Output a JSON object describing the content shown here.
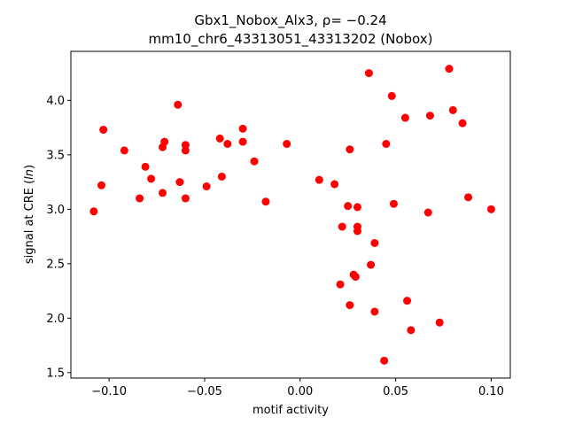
{
  "chart_data": {
    "type": "scatter",
    "title_line1": "Gbx1_Nobox_Alx3, ρ= −0.24",
    "title_line2": "mm10_chr6_43313051_43313202 (Nobox)",
    "xlabel": "motif activity",
    "ylabel": "signal at CRE (ln)",
    "xlim": [
      -0.12,
      0.11
    ],
    "ylim": [
      1.45,
      4.45
    ],
    "xticks": [
      -0.1,
      -0.05,
      0.0,
      0.05,
      0.1
    ],
    "xtick_labels": [
      "−0.10",
      "−0.05",
      "0.00",
      "0.05",
      "0.10"
    ],
    "yticks": [
      1.5,
      2.0,
      2.5,
      3.0,
      3.5,
      4.0
    ],
    "ytick_labels": [
      "1.5",
      "2.0",
      "2.5",
      "3.0",
      "3.5",
      "4.0"
    ],
    "grid": false,
    "marker_color": "#ff0000",
    "points": [
      {
        "x": -0.108,
        "y": 2.98
      },
      {
        "x": -0.104,
        "y": 3.22
      },
      {
        "x": -0.103,
        "y": 3.73
      },
      {
        "x": -0.092,
        "y": 3.54
      },
      {
        "x": -0.084,
        "y": 3.1
      },
      {
        "x": -0.081,
        "y": 3.39
      },
      {
        "x": -0.078,
        "y": 3.28
      },
      {
        "x": -0.072,
        "y": 3.57
      },
      {
        "x": -0.071,
        "y": 3.62
      },
      {
        "x": -0.072,
        "y": 3.15
      },
      {
        "x": -0.064,
        "y": 3.96
      },
      {
        "x": -0.063,
        "y": 3.25
      },
      {
        "x": -0.06,
        "y": 3.59
      },
      {
        "x": -0.06,
        "y": 3.54
      },
      {
        "x": -0.06,
        "y": 3.1
      },
      {
        "x": -0.049,
        "y": 3.21
      },
      {
        "x": -0.042,
        "y": 3.65
      },
      {
        "x": -0.041,
        "y": 3.3
      },
      {
        "x": -0.038,
        "y": 3.6
      },
      {
        "x": -0.03,
        "y": 3.74
      },
      {
        "x": -0.03,
        "y": 3.62
      },
      {
        "x": -0.024,
        "y": 3.44
      },
      {
        "x": -0.018,
        "y": 3.07
      },
      {
        "x": -0.007,
        "y": 3.6
      },
      {
        "x": 0.01,
        "y": 3.27
      },
      {
        "x": 0.018,
        "y": 3.23
      },
      {
        "x": 0.021,
        "y": 2.31
      },
      {
        "x": 0.022,
        "y": 2.84
      },
      {
        "x": 0.025,
        "y": 3.03
      },
      {
        "x": 0.026,
        "y": 3.55
      },
      {
        "x": 0.026,
        "y": 2.12
      },
      {
        "x": 0.028,
        "y": 2.4
      },
      {
        "x": 0.029,
        "y": 2.38
      },
      {
        "x": 0.03,
        "y": 3.02
      },
      {
        "x": 0.03,
        "y": 2.84
      },
      {
        "x": 0.03,
        "y": 2.8
      },
      {
        "x": 0.036,
        "y": 4.25
      },
      {
        "x": 0.037,
        "y": 2.49
      },
      {
        "x": 0.039,
        "y": 2.69
      },
      {
        "x": 0.039,
        "y": 2.06
      },
      {
        "x": 0.044,
        "y": 1.61
      },
      {
        "x": 0.045,
        "y": 3.6
      },
      {
        "x": 0.048,
        "y": 4.04
      },
      {
        "x": 0.049,
        "y": 3.05
      },
      {
        "x": 0.055,
        "y": 3.84
      },
      {
        "x": 0.056,
        "y": 2.16
      },
      {
        "x": 0.058,
        "y": 1.89
      },
      {
        "x": 0.067,
        "y": 2.97
      },
      {
        "x": 0.068,
        "y": 3.86
      },
      {
        "x": 0.073,
        "y": 1.96
      },
      {
        "x": 0.078,
        "y": 4.29
      },
      {
        "x": 0.08,
        "y": 3.91
      },
      {
        "x": 0.085,
        "y": 3.79
      },
      {
        "x": 0.088,
        "y": 3.11
      },
      {
        "x": 0.1,
        "y": 3.0
      }
    ]
  }
}
